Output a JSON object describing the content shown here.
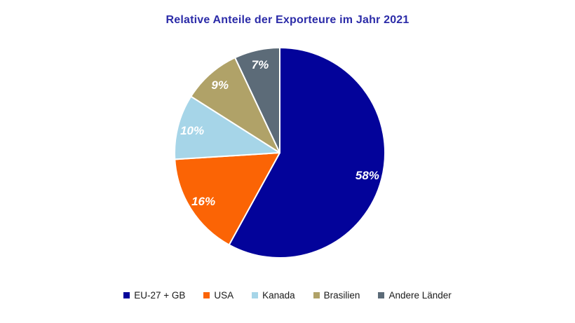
{
  "chart_data": {
    "type": "pie",
    "title": "Relative Anteile der Exporteure im Jahr 2021",
    "title_color": "#2B2BA8",
    "background_color": "#FFFFFF",
    "start_angle_deg": 0,
    "direction": "clockwise",
    "legend_position": "bottom",
    "data_labels": "inside, white bold italic percent",
    "slices": [
      {
        "label": "EU-27 + GB",
        "value": 58,
        "display": "58%",
        "color": "#03039A"
      },
      {
        "label": "USA",
        "value": 16,
        "display": "16%",
        "color": "#FB6405"
      },
      {
        "label": "Kanada",
        "value": 10,
        "display": "10%",
        "color": "#A6D5E8"
      },
      {
        "label": "Brasilien",
        "value": 9,
        "display": "9%",
        "color": "#B0A268"
      },
      {
        "label": "Andere Länder",
        "value": 7,
        "display": "7%",
        "color": "#5C6B78"
      }
    ]
  }
}
